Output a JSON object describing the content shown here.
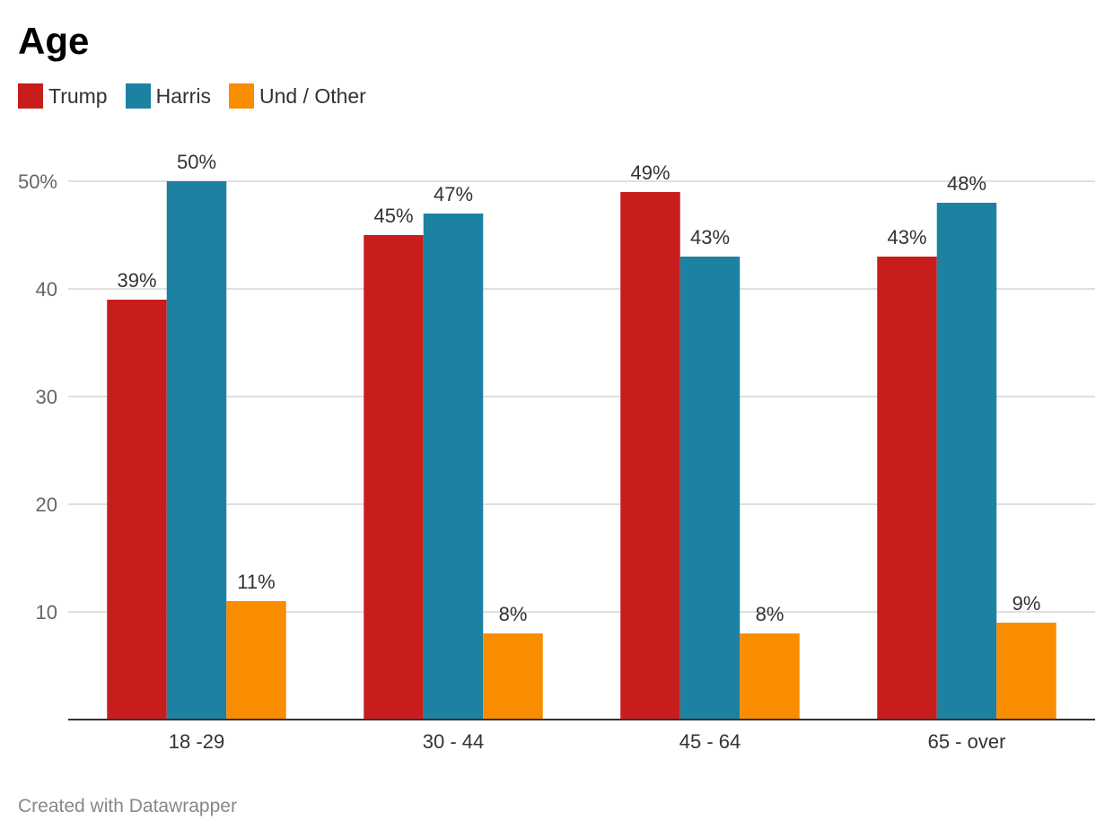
{
  "chart_data": {
    "type": "bar",
    "title": "Age",
    "categories": [
      "18 -29",
      "30 - 44",
      "45 - 64",
      "65 - over"
    ],
    "series": [
      {
        "name": "Trump",
        "color": "#c71e1d",
        "values": [
          39,
          45,
          49,
          43
        ],
        "labels": [
          "39%",
          "45%",
          "49%",
          "43%"
        ]
      },
      {
        "name": "Harris",
        "color": "#1d81a2",
        "values": [
          50,
          47,
          43,
          48
        ],
        "labels": [
          "50%",
          "47%",
          "43%",
          "48%"
        ]
      },
      {
        "name": "Und / Other",
        "color": "#fa8c00",
        "values": [
          11,
          8,
          8,
          9
        ],
        "labels": [
          "11%",
          "8%",
          "8%",
          "9%"
        ]
      }
    ],
    "yticks": [
      10,
      20,
      30,
      40,
      50
    ],
    "ytick_labels": [
      "10",
      "20",
      "30",
      "40",
      "50%"
    ],
    "ylim": [
      0,
      50
    ],
    "xlabel": "",
    "ylabel": "",
    "grid": true,
    "legend_position": "top-left"
  },
  "credit": "Created with Datawrapper"
}
